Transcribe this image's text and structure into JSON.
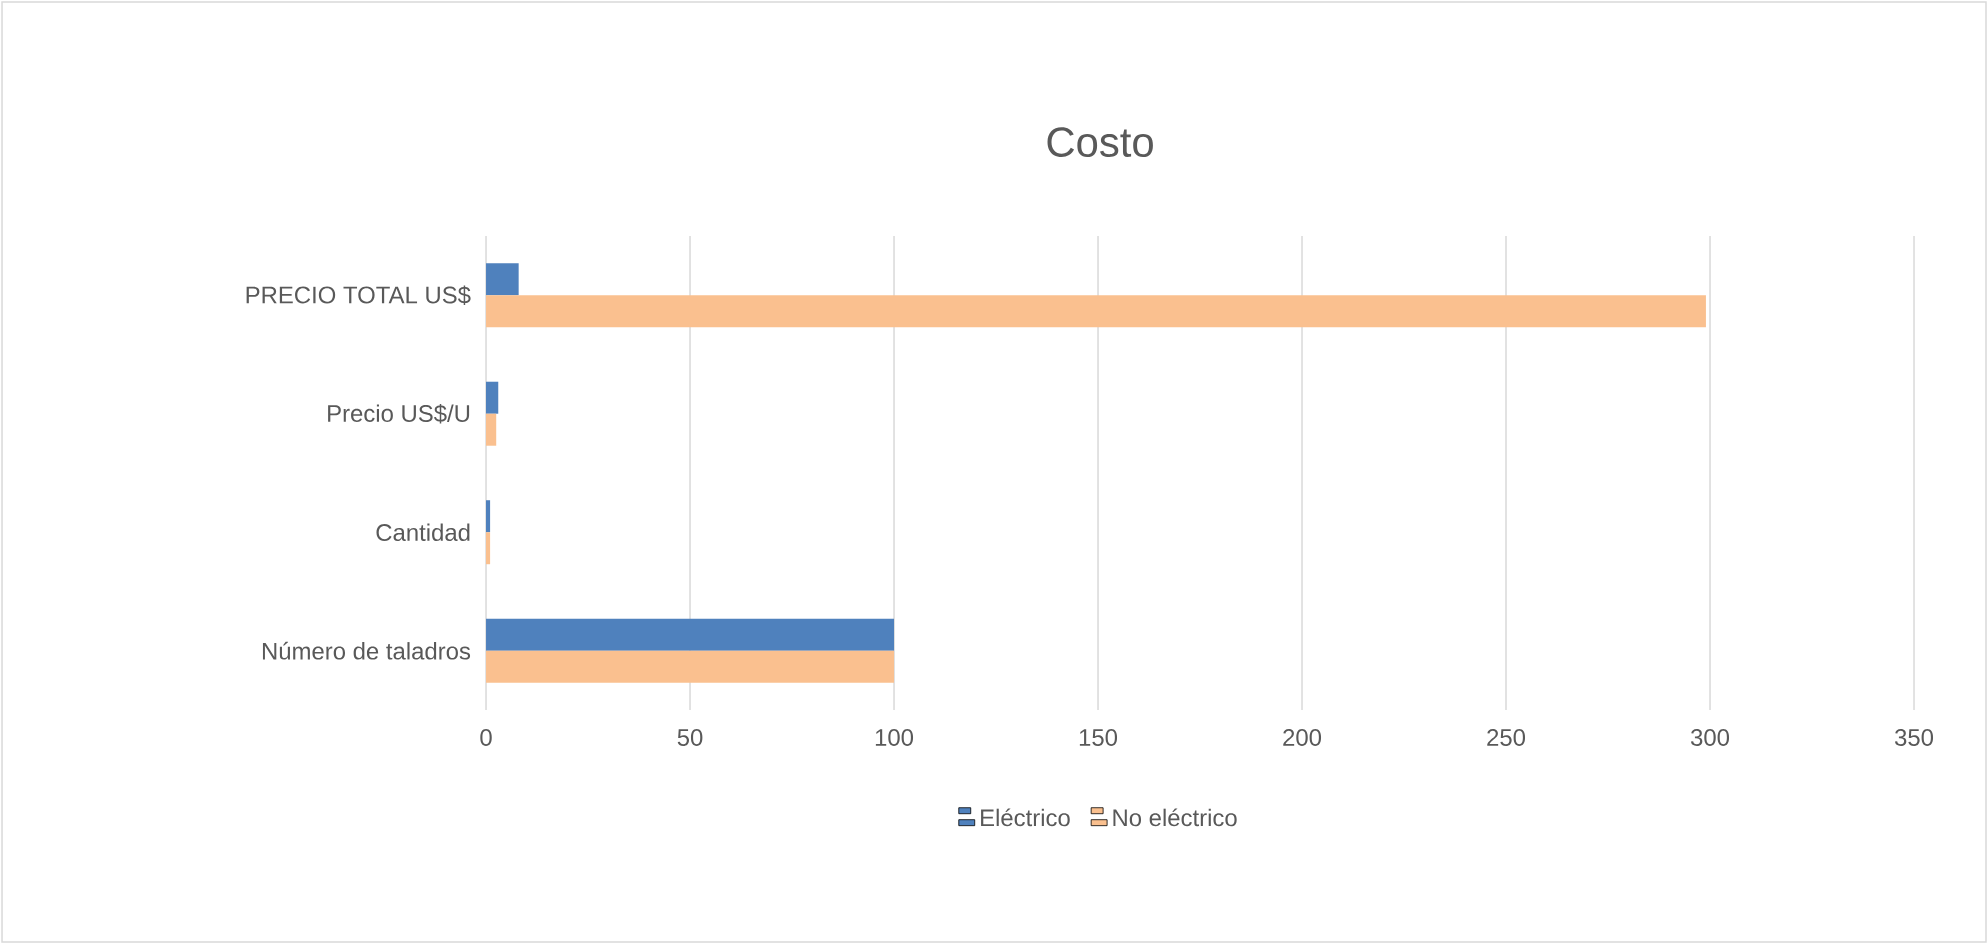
{
  "chart_data": {
    "type": "bar",
    "orientation": "horizontal",
    "title": "Costo",
    "categories": [
      "PRECIO TOTAL US$",
      "Precio US$/U",
      "Cantidad",
      "Número de taladros"
    ],
    "series": [
      {
        "name": "Eléctrico",
        "color": "#4f81bd",
        "values": [
          8,
          3,
          1,
          100
        ]
      },
      {
        "name": "No eléctrico",
        "color": "#fac08f",
        "values": [
          299,
          2.5,
          1,
          100
        ]
      }
    ],
    "xlim": [
      0,
      350
    ],
    "xticks": [
      0,
      50,
      100,
      150,
      200,
      250,
      300,
      350
    ],
    "grid": "x",
    "legend": "bottom"
  }
}
